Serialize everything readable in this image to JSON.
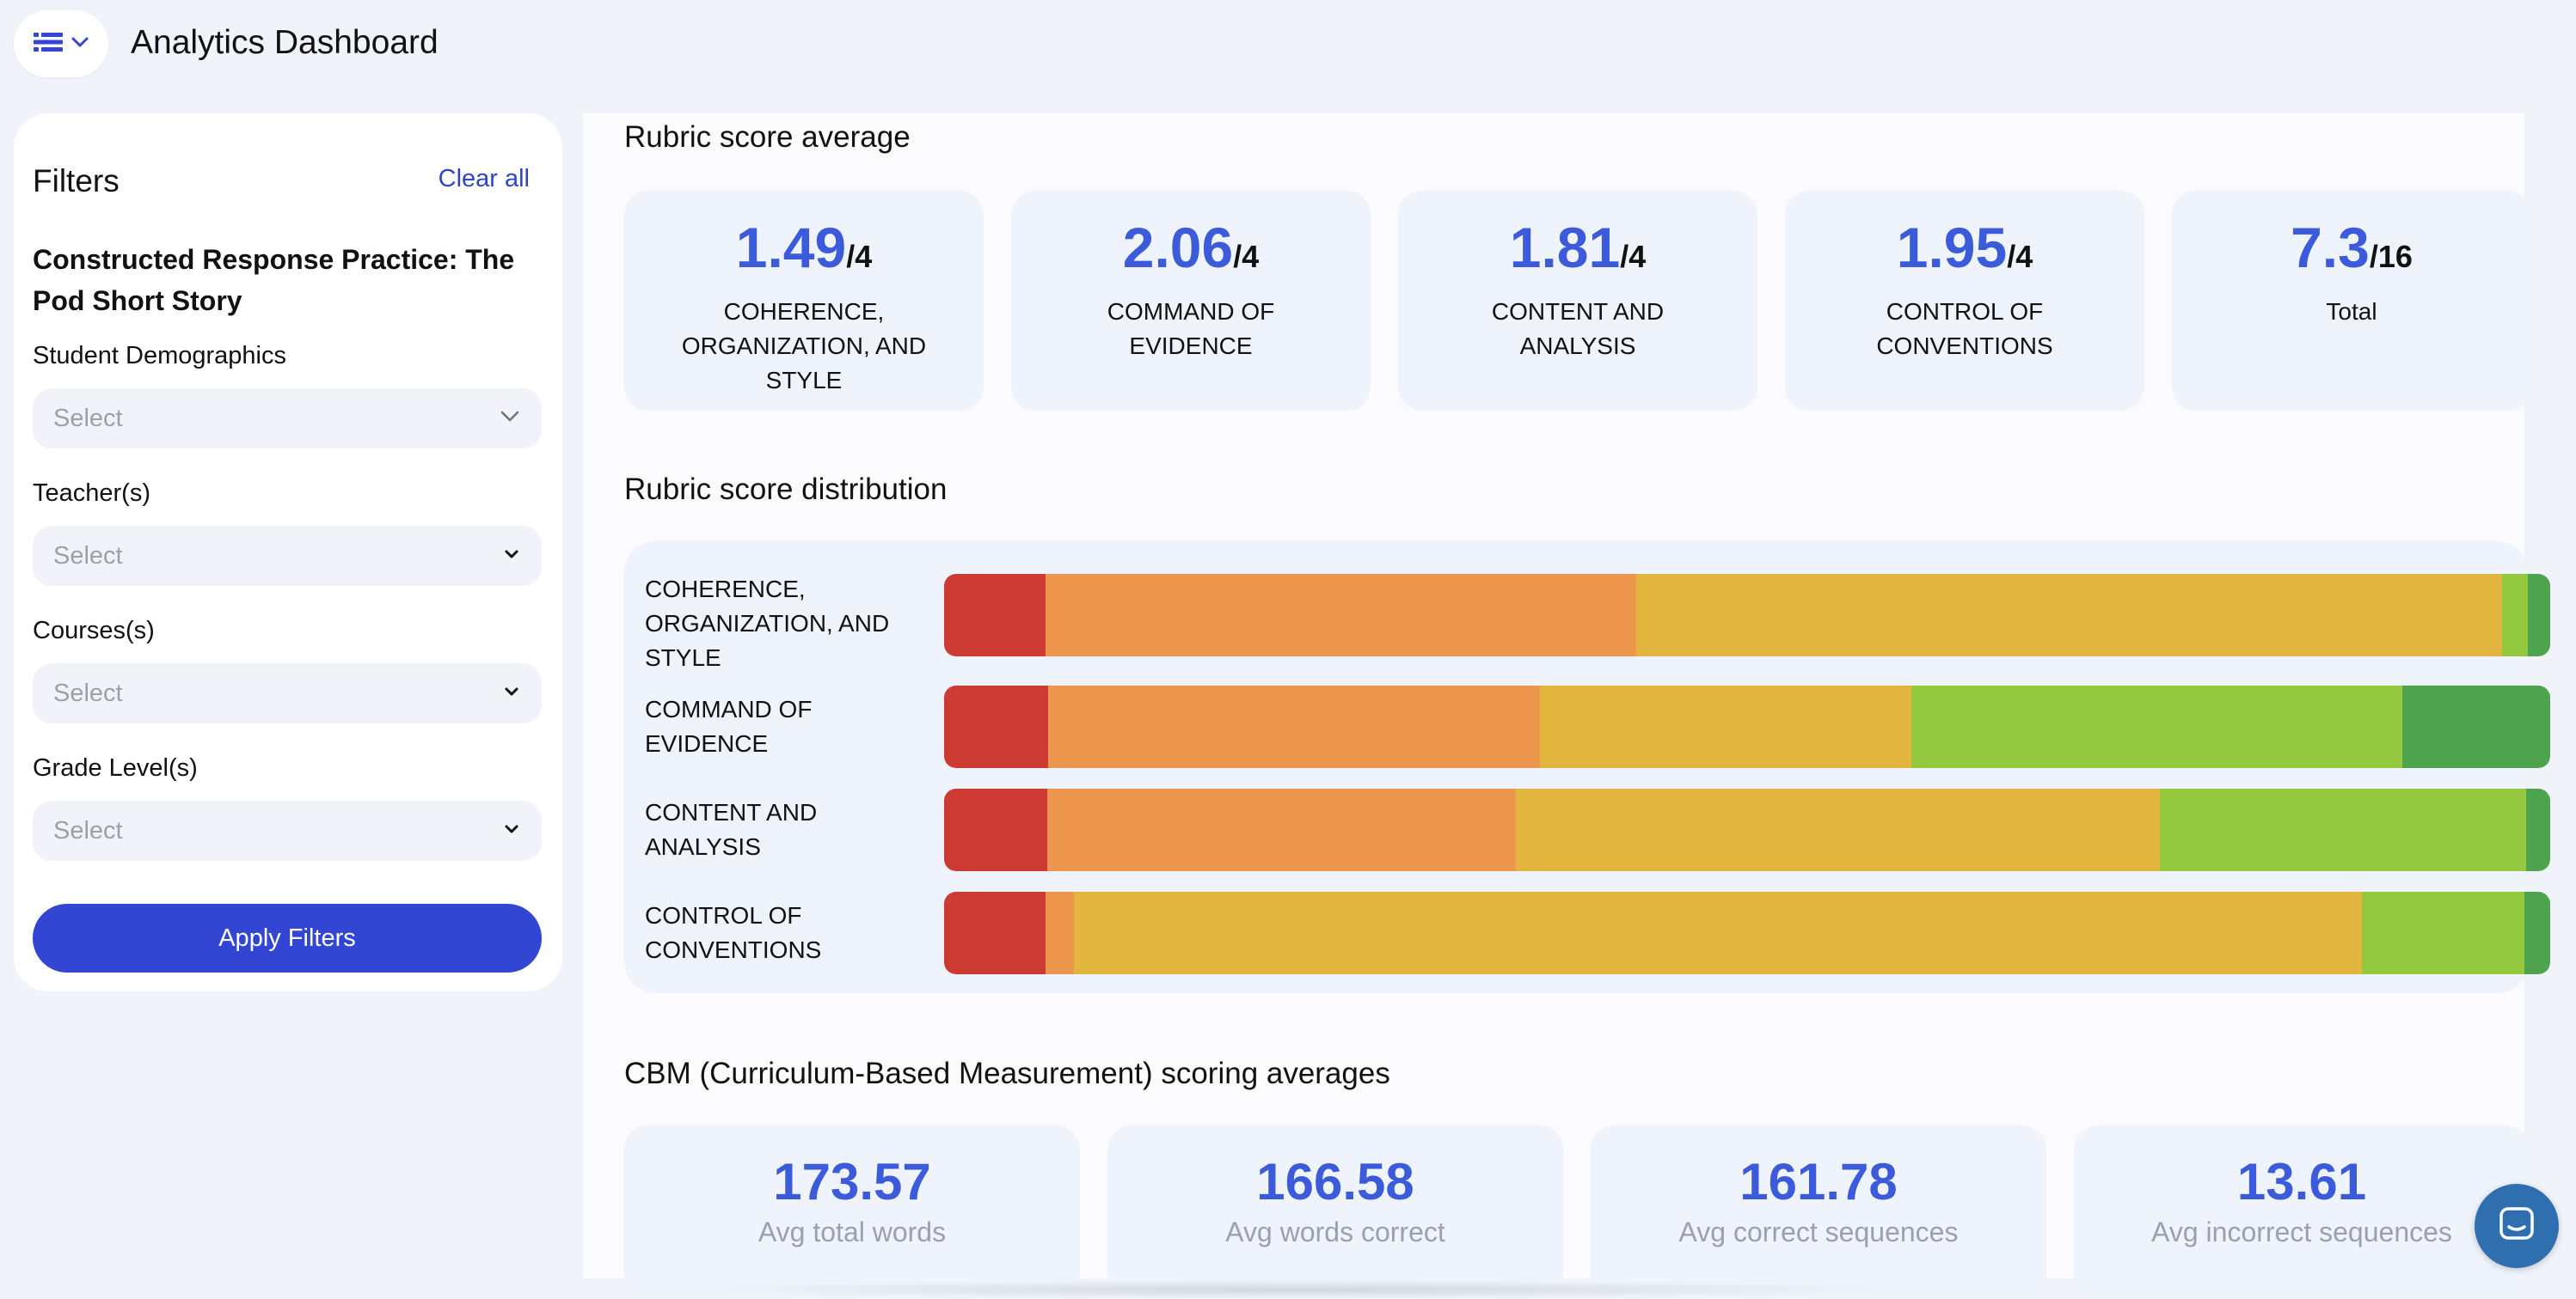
{
  "header": {
    "title": "Analytics Dashboard",
    "menu_icon": "dashboard-icon"
  },
  "sidebar": {
    "title": "Filters",
    "clear_all": "Clear all",
    "assignment": "Constructed Response Practice: The Pod Short Story",
    "filters": [
      {
        "label": "Student Demographics",
        "placeholder": "Select"
      },
      {
        "label": "Teacher(s)",
        "placeholder": "Select"
      },
      {
        "label": "Courses(s)",
        "placeholder": "Select"
      },
      {
        "label": "Grade Level(s)",
        "placeholder": "Select"
      }
    ],
    "apply": "Apply Filters"
  },
  "rubric_average": {
    "title": "Rubric score average",
    "cards": [
      {
        "value": "1.49",
        "max": "/4",
        "label": "COHERENCE, ORGANIZATION, AND STYLE"
      },
      {
        "value": "2.06",
        "max": "/4",
        "label": "COMMAND OF EVIDENCE"
      },
      {
        "value": "1.81",
        "max": "/4",
        "label": "CONTENT AND ANALYSIS"
      },
      {
        "value": "1.95",
        "max": "/4",
        "label": "CONTROL OF CONVENTIONS"
      },
      {
        "value": "7.3",
        "max": "/16",
        "label": "Total"
      }
    ]
  },
  "rubric_distribution": {
    "title": "Rubric score distribution",
    "colors": [
      "#cc3a33",
      "#ec964e",
      "#e2b63e",
      "#94c841",
      "#4ea44e"
    ],
    "rows": [
      {
        "label": "COHERENCE, ORGANIZATION, AND STYLE",
        "shares": [
          6.3,
          36.8,
          53.9,
          1.6,
          1.4
        ]
      },
      {
        "label": "COMMAND OF EVIDENCE",
        "shares": [
          6.5,
          30.6,
          23.1,
          30.6,
          9.2
        ]
      },
      {
        "label": "CONTENT AND ANALYSIS",
        "shares": [
          6.4,
          29.2,
          40.1,
          22.8,
          1.5
        ]
      },
      {
        "label": "CONTROL OF CONVENTIONS",
        "shares": [
          6.3,
          1.8,
          80.2,
          10.1,
          1.6
        ]
      }
    ]
  },
  "cbm": {
    "title": "CBM (Curriculum-Based Measurement) scoring averages",
    "cards": [
      {
        "value": "173.57",
        "label": "Avg total words"
      },
      {
        "value": "166.58",
        "label": "Avg words correct"
      },
      {
        "value": "161.78",
        "label": "Avg correct sequences"
      },
      {
        "value": "13.61",
        "label": "Avg incorrect sequences"
      }
    ]
  },
  "chat": {
    "icon": "chat-icon"
  }
}
